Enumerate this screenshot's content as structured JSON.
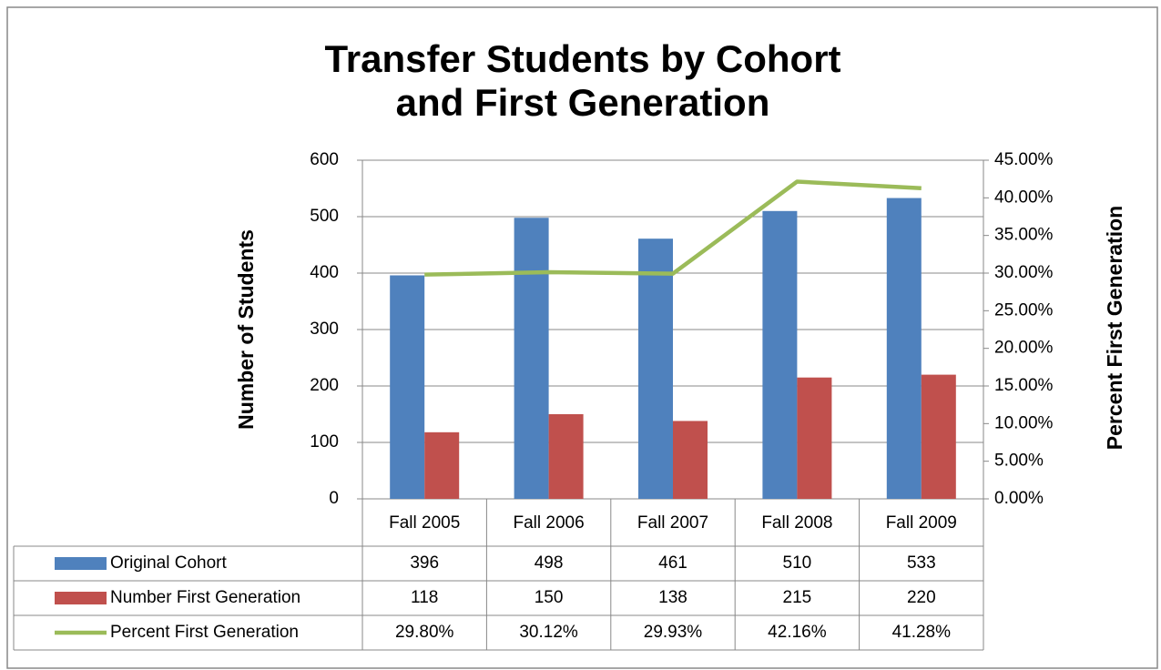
{
  "chart_data": {
    "type": "bar",
    "title": [
      "Transfer Students by Cohort",
      "and First Generation"
    ],
    "y_label": "Number of Students",
    "y2_label": "Percent First Generation",
    "categories": [
      "Fall 2005",
      "Fall 2006",
      "Fall 2007",
      "Fall 2008",
      "Fall 2009"
    ],
    "series": [
      {
        "name": "Original Cohort",
        "color": "#4f81bd",
        "type": "bar",
        "values": [
          396,
          498,
          461,
          510,
          533
        ]
      },
      {
        "name": "Number First Generation",
        "color": "#c0504d",
        "type": "bar",
        "values": [
          118,
          150,
          138,
          215,
          220
        ]
      },
      {
        "name": "Percent First Generation",
        "color": "#9bbb59",
        "type": "line",
        "axis": "y2",
        "values": [
          29.8,
          30.12,
          29.93,
          42.16,
          41.28
        ],
        "value_labels": [
          "29.80%",
          "30.12%",
          "29.93%",
          "42.16%",
          "41.28%"
        ]
      }
    ],
    "ylim": [
      0,
      600
    ],
    "yticks": [
      0,
      100,
      200,
      300,
      400,
      500,
      600
    ],
    "y2lim": [
      0,
      45
    ],
    "y2ticks": [
      {
        "value": 0,
        "label": "0.00%"
      },
      {
        "value": 5,
        "label": "5.00%"
      },
      {
        "value": 10,
        "label": "10.00%"
      },
      {
        "value": 15,
        "label": "15.00%"
      },
      {
        "value": 20,
        "label": "20.00%"
      },
      {
        "value": 25,
        "label": "25.00%"
      },
      {
        "value": 30,
        "label": "30.00%"
      },
      {
        "value": 35,
        "label": "35.00%"
      },
      {
        "value": 40,
        "label": "40.00%"
      },
      {
        "value": 45,
        "label": "45.00%"
      }
    ],
    "grid": true,
    "data_table": true
  }
}
